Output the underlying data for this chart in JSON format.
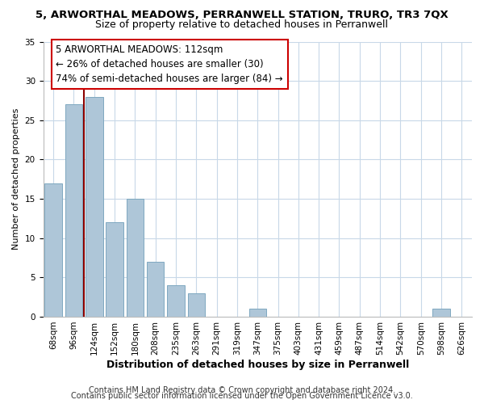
{
  "title": "5, ARWORTHAL MEADOWS, PERRANWELL STATION, TRURO, TR3 7QX",
  "subtitle": "Size of property relative to detached houses in Perranwell",
  "xlabel": "Distribution of detached houses by size in Perranwell",
  "ylabel": "Number of detached properties",
  "bar_labels": [
    "68sqm",
    "96sqm",
    "124sqm",
    "152sqm",
    "180sqm",
    "208sqm",
    "235sqm",
    "263sqm",
    "291sqm",
    "319sqm",
    "347sqm",
    "375sqm",
    "403sqm",
    "431sqm",
    "459sqm",
    "487sqm",
    "514sqm",
    "542sqm",
    "570sqm",
    "598sqm",
    "626sqm"
  ],
  "bar_values": [
    17,
    27,
    28,
    12,
    15,
    7,
    4,
    3,
    0,
    0,
    1,
    0,
    0,
    0,
    0,
    0,
    0,
    0,
    0,
    1,
    0
  ],
  "bar_color": "#aec6d8",
  "bar_edge_color": "#7fa8c0",
  "ylim": [
    0,
    35
  ],
  "red_line_x": 1.5,
  "annotation_line1": "5 ARWORTHAL MEADOWS: 112sqm",
  "annotation_line2": "← 26% of detached houses are smaller (30)",
  "annotation_line3": "74% of semi-detached houses are larger (84) →",
  "footer_line1": "Contains HM Land Registry data © Crown copyright and database right 2024.",
  "footer_line2": "Contains public sector information licensed under the Open Government Licence v3.0.",
  "bg_color": "#ffffff",
  "plot_bg_color": "#ffffff",
  "grid_color": "#c8d8e8",
  "title_fontsize": 9.5,
  "subtitle_fontsize": 9,
  "ylabel_fontsize": 8,
  "xlabel_fontsize": 9,
  "tick_fontsize": 7.5,
  "annotation_fontsize": 8.5,
  "footer_fontsize": 7
}
